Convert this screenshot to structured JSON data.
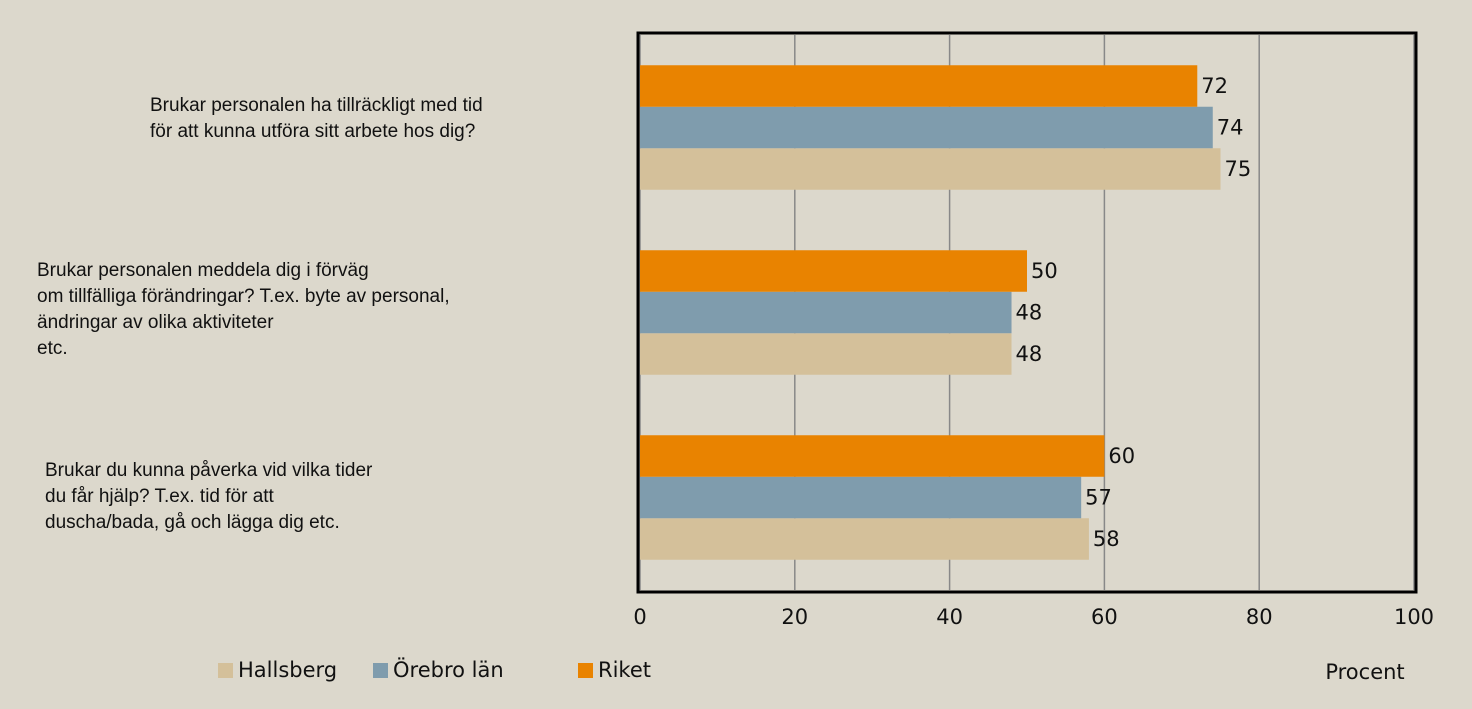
{
  "chart_data": {
    "type": "barh",
    "categories": [
      "Brukar personalen ha tillräckligt med tid\nför att kunna utföra sitt arbete hos dig?",
      "Brukar personalen meddela dig i förväg\nom tillfälliga förändringar? T.ex. byte av personal,\nändringar av olika aktiviteter\netc.",
      "Brukar du kunna påverka vid vilka tider\ndu får hjälp? T.ex. tid för att\nduscha/bada, gå och lägga dig etc."
    ],
    "series": [
      {
        "name": "Hallsberg",
        "color": "#d4c09a",
        "values": [
          75,
          48,
          58
        ]
      },
      {
        "name": "Örebro län",
        "color": "#7f9cad",
        "values": [
          74,
          48,
          57
        ]
      },
      {
        "name": "Riket",
        "color": "#e98300",
        "values": [
          72,
          50,
          60
        ]
      }
    ],
    "xlim": [
      0,
      100
    ],
    "xticks": [
      0,
      20,
      40,
      60,
      80,
      100
    ],
    "grid": true,
    "xlabel": "Procent",
    "legend": "bottom"
  }
}
